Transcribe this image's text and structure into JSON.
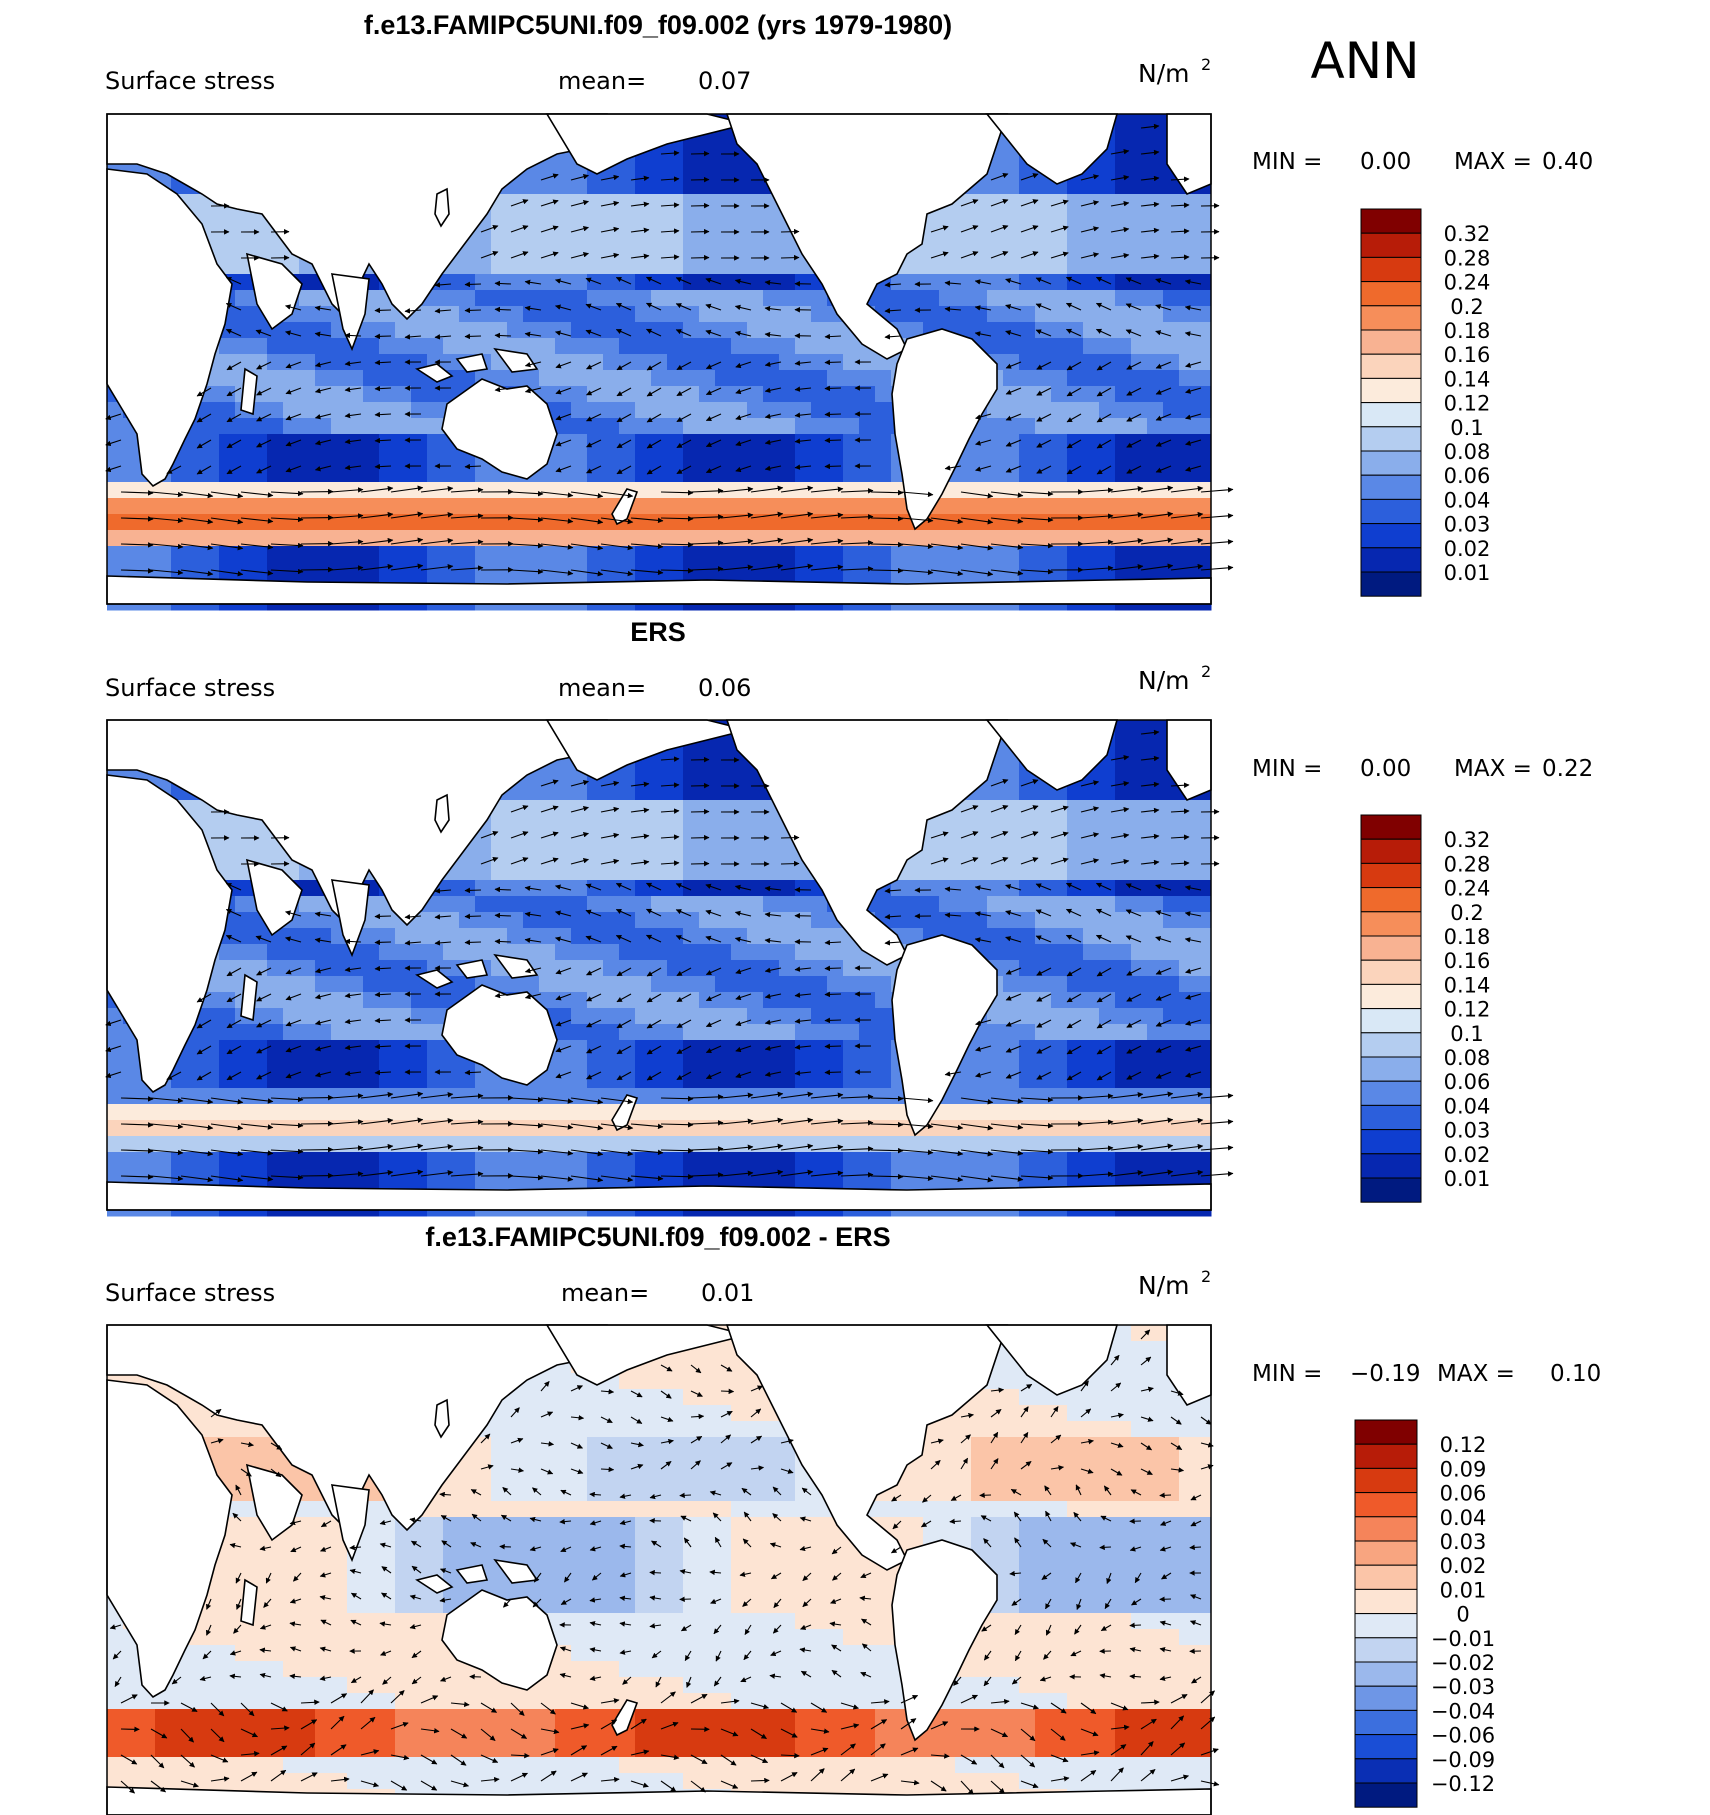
{
  "season": "ANN",
  "panels": [
    {
      "title": "f.e13.FAMIPC5UNI.f09_f09.002 (yrs 1979-1980)",
      "variable": "Surface stress",
      "mean_label": "mean=",
      "mean_value": "0.07",
      "units_base": "N/m",
      "units_exp": "2",
      "min_label": "MIN =",
      "min_value": "0.00",
      "max_label": "MAX =",
      "max_value": "0.40",
      "colorbar_labels": [
        "0.32",
        "0.28",
        "0.24",
        "0.2",
        "0.18",
        "0.16",
        "0.14",
        "0.12",
        "0.1",
        "0.08",
        "0.06",
        "0.04",
        "0.03",
        "0.02",
        "0.01"
      ]
    },
    {
      "title": "ERS",
      "variable": "Surface stress",
      "mean_label": "mean=",
      "mean_value": "0.06",
      "units_base": "N/m",
      "units_exp": "2",
      "min_label": "MIN =",
      "min_value": "0.00",
      "max_label": "MAX =",
      "max_value": "0.22",
      "colorbar_labels": [
        "0.32",
        "0.28",
        "0.24",
        "0.2",
        "0.18",
        "0.16",
        "0.14",
        "0.12",
        "0.1",
        "0.08",
        "0.06",
        "0.04",
        "0.03",
        "0.02",
        "0.01"
      ]
    },
    {
      "title": "f.e13.FAMIPC5UNI.f09_f09.002 - ERS",
      "variable": "Surface stress",
      "mean_label": "mean=",
      "mean_value": "0.01",
      "units_base": "N/m",
      "units_exp": "2",
      "min_label": "MIN =",
      "min_value": "−0.19",
      "max_label": "MAX =",
      "max_value": "0.10",
      "colorbar_labels": [
        "0.12",
        "0.09",
        "0.06",
        "0.04",
        "0.03",
        "0.02",
        "0.01",
        "0",
        "−0.01",
        "−0.02",
        "−0.03",
        "−0.04",
        "−0.06",
        "−0.09",
        "−0.12"
      ]
    }
  ],
  "colors": {
    "seq_scale": [
      "#800000",
      "#b71c08",
      "#d73a10",
      "#ef6a2c",
      "#f68e5a",
      "#f8b292",
      "#fbd4bc",
      "#fcebdc",
      "#d9e8f6",
      "#b4cdf0",
      "#8aaeeb",
      "#5a88e6",
      "#2c5fdc",
      "#0f3ed0",
      "#0627b0",
      "#001a80"
    ],
    "div_scale": [
      "#800000",
      "#b71c08",
      "#d73a10",
      "#ef5a2a",
      "#f5845a",
      "#f8a580",
      "#fbc5a8",
      "#fde4d3",
      "#dfe9f6",
      "#c2d4f1",
      "#9bb8ec",
      "#6e96e6",
      "#3c6fde",
      "#1a4ed6",
      "#0a2fb4",
      "#001a80"
    ],
    "land": "#ffffff",
    "coastline": "#000000",
    "vector": "#000000"
  },
  "chart_data": [
    {
      "type": "heatmap",
      "title": "f.e13.FAMIPC5UNI.f09_f09.002 (yrs 1979-1980)",
      "field": "Surface stress",
      "units": "N/m2",
      "mean": 0.07,
      "min": 0.0,
      "max": 0.4,
      "levels": [
        0.01,
        0.02,
        0.03,
        0.04,
        0.06,
        0.08,
        0.1,
        0.12,
        0.14,
        0.16,
        0.18,
        0.2,
        0.24,
        0.28,
        0.32
      ],
      "overlay": "wind stress vectors",
      "projection": "global cylindrical equidistant, Pacific-centred"
    },
    {
      "type": "heatmap",
      "title": "ERS",
      "field": "Surface stress",
      "units": "N/m2",
      "mean": 0.06,
      "min": 0.0,
      "max": 0.22,
      "levels": [
        0.01,
        0.02,
        0.03,
        0.04,
        0.06,
        0.08,
        0.1,
        0.12,
        0.14,
        0.16,
        0.18,
        0.2,
        0.24,
        0.28,
        0.32
      ],
      "overlay": "wind stress vectors",
      "projection": "global cylindrical equidistant, Pacific-centred"
    },
    {
      "type": "heatmap",
      "title": "f.e13.FAMIPC5UNI.f09_f09.002 - ERS",
      "field": "Surface stress",
      "units": "N/m2",
      "mean": 0.01,
      "min": -0.19,
      "max": 0.1,
      "levels": [
        -0.12,
        -0.09,
        -0.06,
        -0.04,
        -0.03,
        -0.02,
        -0.01,
        0,
        0.01,
        0.02,
        0.03,
        0.04,
        0.06,
        0.09,
        0.12
      ],
      "overlay": "wind stress difference vectors",
      "projection": "global cylindrical equidistant, Pacific-centred"
    }
  ]
}
